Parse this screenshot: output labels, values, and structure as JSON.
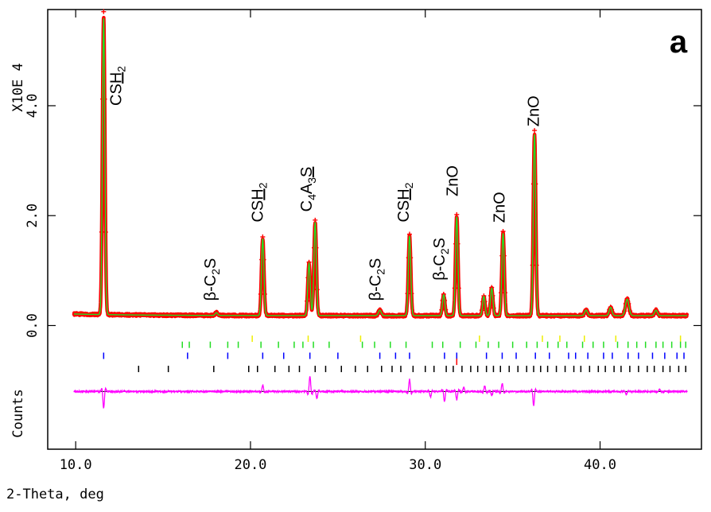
{
  "chart_data": {
    "type": "line",
    "panel_label": "a",
    "xlabel": "2-Theta, deg",
    "ylabel": "Counts",
    "y_scale_note": "X10E  4",
    "xlim": [
      8.4,
      45.8
    ],
    "ylim": [
      -2.25,
      5.75
    ],
    "x_ticks": [
      10.0,
      20.0,
      30.0,
      40.0
    ],
    "x_tick_labels": [
      "10.0",
      "20.0",
      "30.0",
      "40.0"
    ],
    "y_ticks": [
      0.0,
      2.0,
      4.0
    ],
    "y_tick_labels": [
      "0.0",
      "2.0",
      "4.0"
    ],
    "background": 0.18,
    "peaks": [
      {
        "x": 11.6,
        "h": 5.4,
        "w": 0.07
      },
      {
        "x": 18.05,
        "h": 0.05,
        "w": 0.07
      },
      {
        "x": 20.7,
        "h": 1.4,
        "w": 0.07
      },
      {
        "x": 23.35,
        "h": 0.95,
        "w": 0.07
      },
      {
        "x": 23.7,
        "h": 1.7,
        "w": 0.07
      },
      {
        "x": 27.4,
        "h": 0.1,
        "w": 0.08
      },
      {
        "x": 29.1,
        "h": 1.45,
        "w": 0.07
      },
      {
        "x": 31.05,
        "h": 0.38,
        "w": 0.07
      },
      {
        "x": 31.8,
        "h": 1.8,
        "w": 0.07
      },
      {
        "x": 33.35,
        "h": 0.35,
        "w": 0.07
      },
      {
        "x": 33.8,
        "h": 0.5,
        "w": 0.07
      },
      {
        "x": 34.45,
        "h": 1.5,
        "w": 0.07
      },
      {
        "x": 36.25,
        "h": 3.3,
        "w": 0.07
      },
      {
        "x": 39.2,
        "h": 0.1,
        "w": 0.08
      },
      {
        "x": 40.6,
        "h": 0.15,
        "w": 0.08
      },
      {
        "x": 41.55,
        "h": 0.3,
        "w": 0.1
      },
      {
        "x": 43.2,
        "h": 0.1,
        "w": 0.08
      }
    ],
    "series": [
      {
        "name": "observed",
        "color": "#ff0000"
      },
      {
        "name": "calculated",
        "color": "#22dd22"
      },
      {
        "name": "difference",
        "color": "#ff00ff"
      }
    ],
    "annotations": [
      {
        "parts": [
          {
            "t": "CS"
          },
          {
            "t": "H",
            "u": true
          },
          {
            "t": "2",
            "sub": true
          }
        ],
        "x": 12.6,
        "y": 4.0
      },
      {
        "parts": [
          {
            "t": "β-C"
          },
          {
            "t": "2",
            "sub": true
          },
          {
            "t": "S"
          }
        ],
        "x": 18.0,
        "y": 0.45
      },
      {
        "parts": [
          {
            "t": "CS"
          },
          {
            "t": "H",
            "u": true
          },
          {
            "t": "2",
            "sub": true
          }
        ],
        "x": 20.7,
        "y": 1.88
      },
      {
        "parts": [
          {
            "t": "C"
          },
          {
            "t": "4",
            "sub": true
          },
          {
            "t": "A"
          },
          {
            "t": "3",
            "sub": true
          },
          {
            "t": "S",
            "u": true
          }
        ],
        "x": 23.5,
        "y": 2.07
      },
      {
        "parts": [
          {
            "t": "β-C"
          },
          {
            "t": "2",
            "sub": true
          },
          {
            "t": "S"
          }
        ],
        "x": 27.45,
        "y": 0.45
      },
      {
        "parts": [
          {
            "t": "CS"
          },
          {
            "t": "H",
            "u": true
          },
          {
            "t": "2",
            "sub": true
          }
        ],
        "x": 29.05,
        "y": 1.88
      },
      {
        "parts": [
          {
            "t": "β-C"
          },
          {
            "t": "2",
            "sub": true
          },
          {
            "t": "S"
          }
        ],
        "x": 31.1,
        "y": 0.82
      },
      {
        "parts": [
          {
            "t": "ZnO"
          }
        ],
        "x": 31.85,
        "y": 2.35
      },
      {
        "parts": [
          {
            "t": "ZnO"
          }
        ],
        "x": 34.55,
        "y": 1.87
      },
      {
        "parts": [
          {
            "t": "ZnO"
          }
        ],
        "x": 36.5,
        "y": 3.62
      }
    ],
    "reflection_rows": [
      {
        "color": "#eeee00",
        "y": -0.24,
        "positions": [
          20.1,
          23.3,
          26.3,
          33.1,
          36.7,
          37.7,
          39.1,
          40.9,
          44.6
        ]
      },
      {
        "color": "#22dd22",
        "y": -0.35,
        "positions": [
          16.1,
          16.5,
          17.7,
          18.7,
          19.3,
          20.6,
          21.6,
          22.5,
          23.0,
          23.6,
          24.5,
          26.4,
          27.1,
          28.0,
          28.9,
          30.4,
          31.0,
          32.0,
          32.9,
          33.6,
          34.2,
          35.0,
          35.8,
          36.4,
          37.0,
          37.6,
          38.1,
          39.0,
          39.6,
          40.2,
          41.0,
          41.6,
          42.1,
          42.6,
          43.2,
          43.6,
          44.1,
          44.6,
          44.9
        ]
      },
      {
        "color": "#0000ff",
        "y": -0.55,
        "positions": [
          11.6,
          16.4,
          18.7,
          20.7,
          21.9,
          23.4,
          25.0,
          27.4,
          28.3,
          29.1,
          31.1,
          31.8,
          33.5,
          34.4,
          35.2,
          36.3,
          37.1,
          38.2,
          38.6,
          39.3,
          40.2,
          40.7,
          41.6,
          42.2,
          43.0,
          43.7,
          44.4,
          44.8
        ]
      },
      {
        "color": "#ff0000",
        "y": -0.66,
        "positions": [
          31.8
        ]
      },
      {
        "color": "#000000",
        "y": -0.79,
        "positions": [
          13.6,
          15.3,
          17.9,
          19.9,
          20.4,
          21.4,
          22.2,
          22.8,
          23.7,
          24.3,
          25.2,
          26.0,
          26.7,
          27.5,
          28.1,
          28.6,
          29.3,
          30.0,
          30.5,
          31.2,
          31.6,
          32.1,
          32.6,
          33.0,
          33.5,
          33.9,
          34.3,
          34.8,
          35.3,
          35.8,
          36.2,
          36.6,
          37.0,
          37.5,
          38.0,
          38.5,
          38.9,
          39.4,
          39.9,
          40.3,
          40.8,
          41.2,
          41.7,
          42.2,
          42.7,
          43.1,
          43.6,
          44.0,
          44.5,
          44.9
        ]
      }
    ],
    "difference_baseline": -1.2,
    "difference_features": [
      {
        "x": 11.6,
        "a": -0.3
      },
      {
        "x": 20.7,
        "a": 0.12
      },
      {
        "x": 23.4,
        "a": 0.28
      },
      {
        "x": 23.8,
        "a": -0.12
      },
      {
        "x": 29.1,
        "a": 0.22
      },
      {
        "x": 30.3,
        "a": -0.1
      },
      {
        "x": 31.1,
        "a": -0.18
      },
      {
        "x": 31.8,
        "a": -0.15
      },
      {
        "x": 32.2,
        "a": 0.08
      },
      {
        "x": 33.4,
        "a": 0.1
      },
      {
        "x": 33.8,
        "a": -0.07
      },
      {
        "x": 34.4,
        "a": 0.15
      },
      {
        "x": 36.2,
        "a": -0.26
      },
      {
        "x": 41.5,
        "a": -0.05
      },
      {
        "x": 43.4,
        "a": 0.04
      }
    ]
  }
}
